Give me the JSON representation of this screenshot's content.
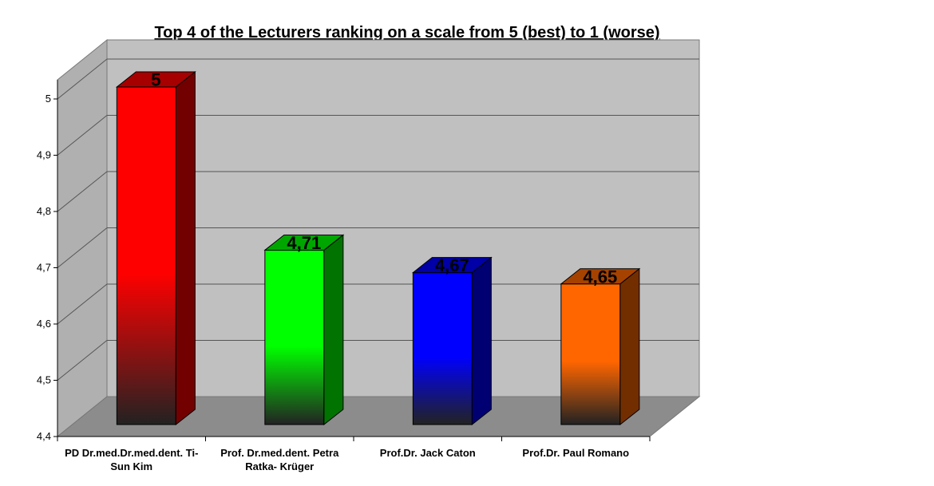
{
  "chart_data": {
    "type": "bar",
    "title": "Top 4 of the Lecturers ranking on a scale from 5 (best) to 1 (worse)",
    "categories": [
      [
        "PD Dr.med.Dr.med.dent. Ti-",
        "Sun Kim"
      ],
      [
        "Prof. Dr.med.dent. Petra",
        "Ratka- Krüger"
      ],
      [
        "Prof.Dr. Jack Caton"
      ],
      [
        "Prof.Dr. Paul Romano"
      ]
    ],
    "values": [
      5,
      4.71,
      4.67,
      4.65
    ],
    "data_labels": [
      "5",
      "4,71",
      "4,67",
      "4,65"
    ],
    "ylim": [
      4.4,
      5.0
    ],
    "yticks": [
      "4,4",
      "4,5",
      "4,6",
      "4,7",
      "4,8",
      "4,9",
      "5"
    ],
    "grid": true,
    "style": "3d",
    "colors": {
      "bars": [
        "#ff0000",
        "#00ff00",
        "#0000ff",
        "#ff6600"
      ],
      "wall": "#c0c0c0",
      "floor": "#8c8c8c"
    }
  }
}
